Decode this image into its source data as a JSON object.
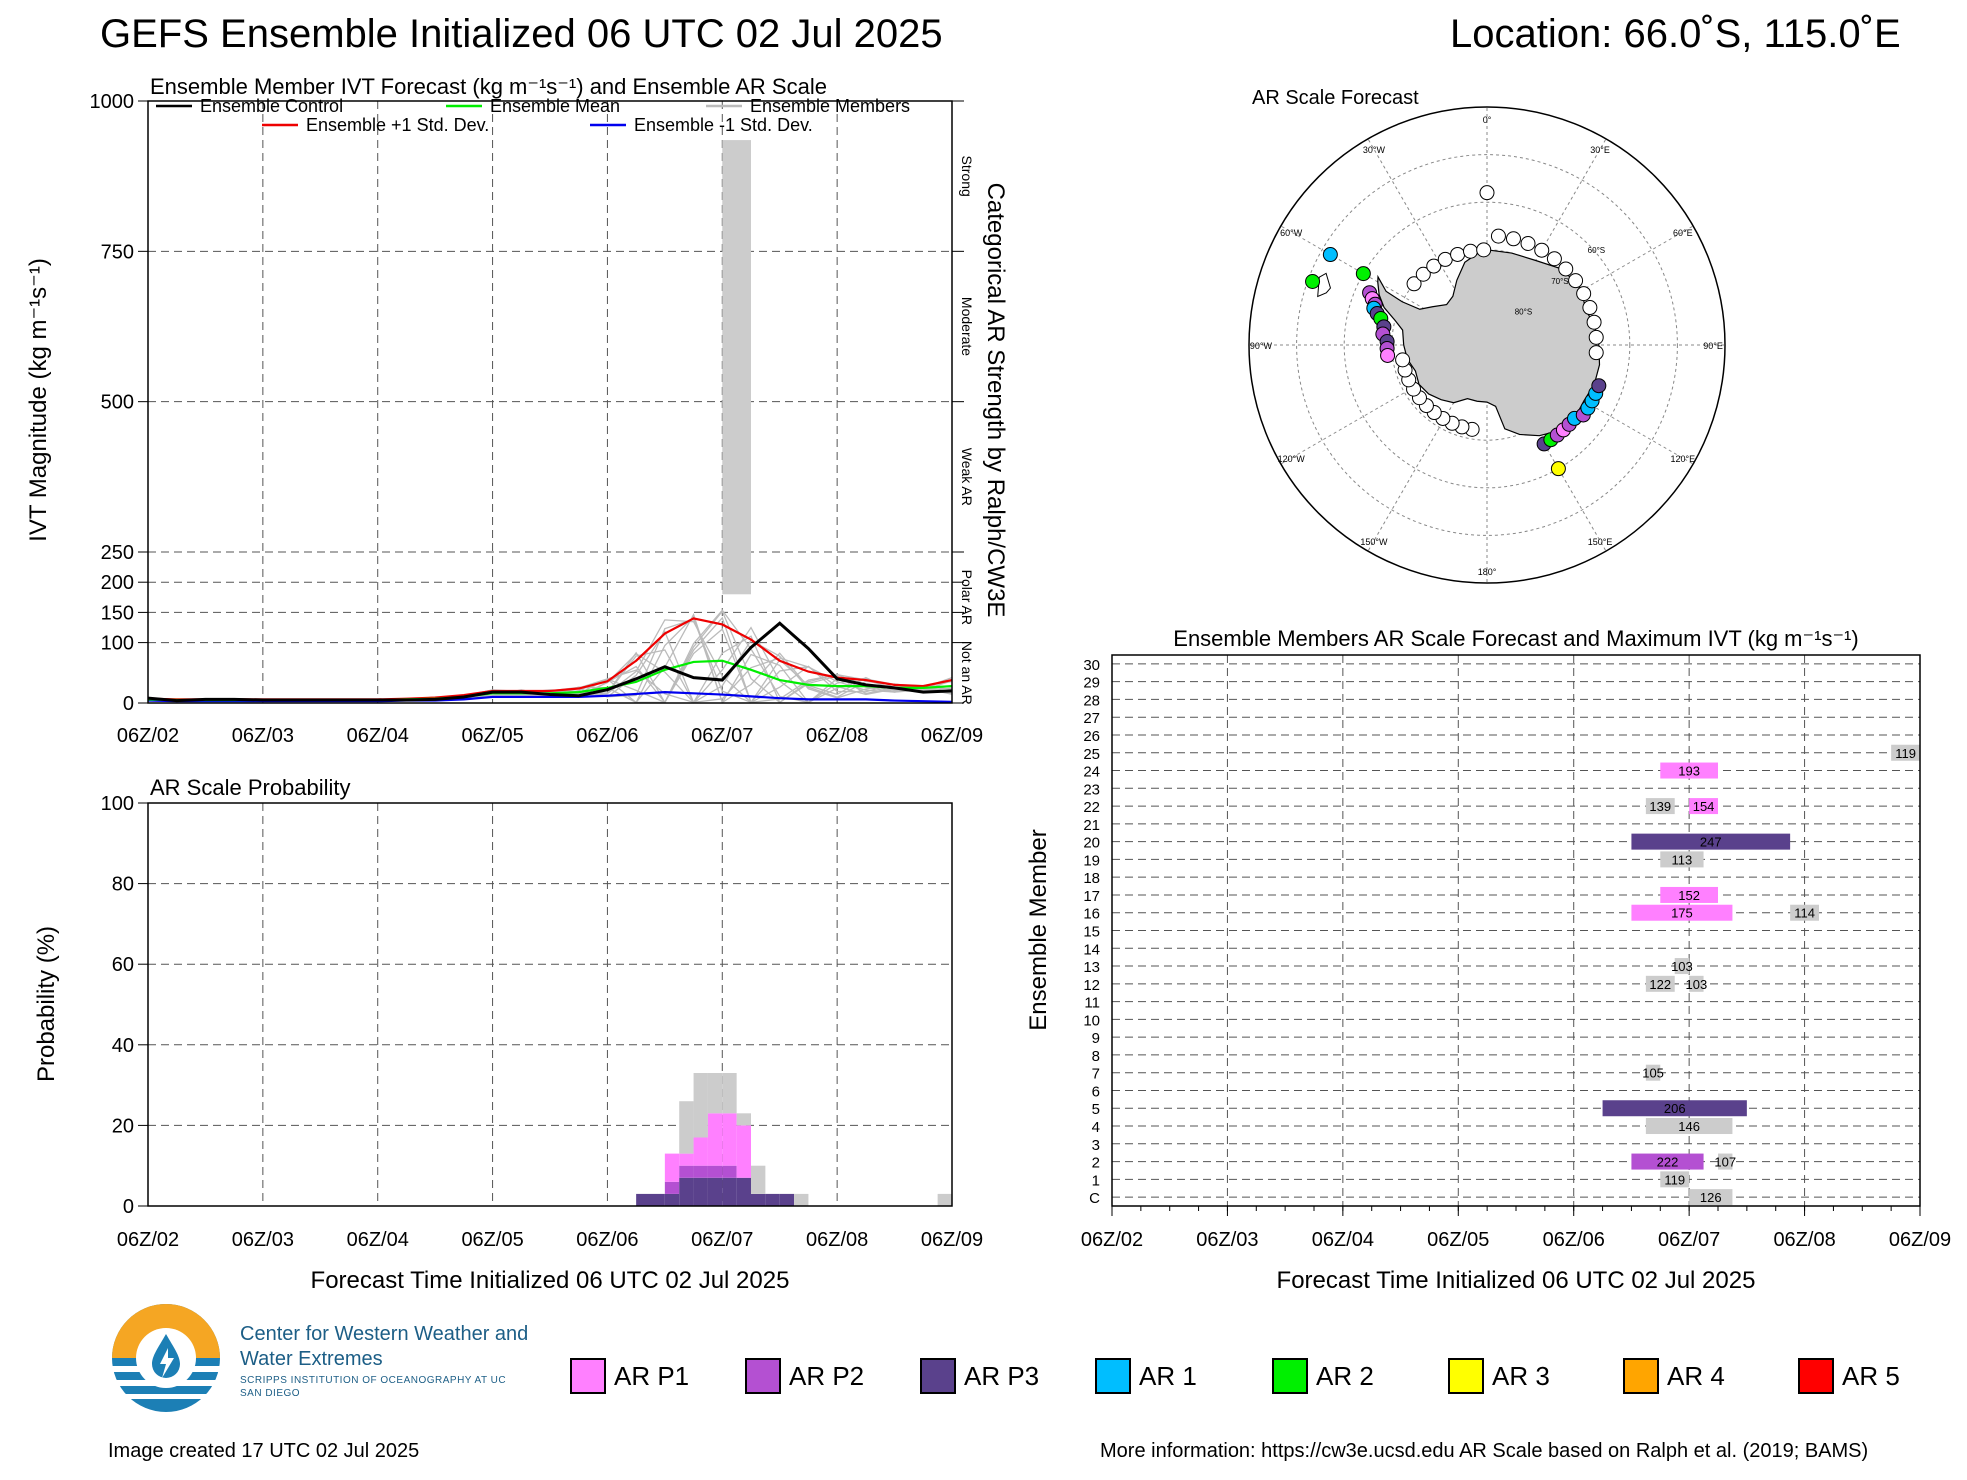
{
  "header": {
    "title": "GEFS Ensemble Initialized 06 UTC 02 Jul 2025",
    "location": "Location: 66.0˚S, 115.0˚E"
  },
  "chart_data": [
    {
      "type": "line",
      "title": "Ensemble Member IVT Forecast (kg m⁻¹s⁻¹) and Ensemble AR Scale",
      "ylabel": "IVT Magnitude (kg m⁻¹s⁻¹)",
      "right_label": "Categorical AR Strength by Ralph/CW3E",
      "ylim": [
        0,
        1000
      ],
      "xlim_hours": [
        0,
        168
      ],
      "x_tick_labels": [
        "06Z/02",
        "06Z/03",
        "06Z/04",
        "06Z/05",
        "06Z/06",
        "06Z/07",
        "06Z/08",
        "06Z/09"
      ],
      "y_ticks": [
        0,
        100,
        150,
        200,
        250,
        500,
        750,
        1000
      ],
      "categories_right": [
        {
          "label": "Not an AR",
          "center": 50
        },
        {
          "label": "Polar AR",
          "center": 175
        },
        {
          "label": "Weak AR",
          "center": 375
        },
        {
          "label": "Moderate",
          "center": 625
        },
        {
          "label": "Strong",
          "center": 875
        }
      ],
      "legend": [
        "Ensemble Control",
        "Ensemble Mean",
        "Ensemble Members",
        "Ensemble +1 Std. Dev.",
        "Ensemble -1 Std. Dev."
      ],
      "x_hours": [
        0,
        6,
        12,
        18,
        24,
        30,
        36,
        42,
        48,
        54,
        60,
        66,
        72,
        78,
        84,
        90,
        96,
        102,
        108,
        114,
        120,
        126,
        132,
        138,
        144,
        150,
        156,
        162,
        168
      ],
      "series": [
        {
          "name": "Ensemble Control",
          "color": "#000000",
          "values": [
            8,
            4,
            6,
            6,
            5,
            5,
            5,
            5,
            5,
            5,
            6,
            10,
            18,
            18,
            14,
            12,
            22,
            40,
            60,
            42,
            38,
            92,
            132,
            90,
            40,
            30,
            25,
            18,
            20
          ]
        },
        {
          "name": "Ensemble Mean",
          "color": "#00ee00",
          "values": [
            6,
            5,
            5,
            5,
            5,
            5,
            5,
            5,
            5,
            6,
            7,
            10,
            16,
            16,
            16,
            18,
            25,
            35,
            55,
            68,
            70,
            55,
            38,
            30,
            28,
            28,
            25,
            25,
            28
          ]
        },
        {
          "name": "Ensemble +1 Std. Dev.",
          "color": "#ee0000",
          "values": [
            7,
            6,
            6,
            6,
            6,
            6,
            6,
            6,
            6,
            7,
            9,
            13,
            20,
            20,
            20,
            24,
            36,
            70,
            115,
            140,
            130,
            105,
            70,
            52,
            42,
            38,
            30,
            28,
            38
          ]
        },
        {
          "name": "Ensemble -1 Std. Dev.",
          "color": "#0000ee",
          "values": [
            4,
            3,
            3,
            3,
            3,
            3,
            3,
            3,
            3,
            4,
            4,
            6,
            10,
            10,
            10,
            10,
            12,
            15,
            18,
            16,
            14,
            11,
            8,
            6,
            6,
            6,
            4,
            3,
            2
          ]
        }
      ],
      "ar_scale_bar": {
        "x_start_hours": 120,
        "x_end_hours": 126,
        "ivt_low": 180,
        "ivt_high": 935,
        "color": "#cccccc"
      }
    },
    {
      "type": "bar",
      "title": "AR Scale Probability",
      "ylabel": "Probability (%)",
      "xlabel": "Forecast Time Initialized 06 UTC 02 Jul 2025",
      "ylim": [
        0,
        100
      ],
      "y_ticks": [
        0,
        20,
        40,
        60,
        80,
        100
      ],
      "x_tick_labels": [
        "06Z/02",
        "06Z/03",
        "06Z/04",
        "06Z/05",
        "06Z/06",
        "06Z/07",
        "06Z/08",
        "06Z/09"
      ],
      "bin_hours": 3,
      "bins": [
        {
          "h": 102,
          "p3": 3,
          "p2": 0,
          "p1": 0,
          "gray": 0
        },
        {
          "h": 105,
          "p3": 3,
          "p2": 0,
          "p1": 0,
          "gray": 0
        },
        {
          "h": 108,
          "p3": 3,
          "p2": 3,
          "p1": 7,
          "gray": 0
        },
        {
          "h": 111,
          "p3": 7,
          "p2": 3,
          "p1": 3,
          "gray": 13
        },
        {
          "h": 114,
          "p3": 7,
          "p2": 3,
          "p1": 7,
          "gray": 16
        },
        {
          "h": 117,
          "p3": 7,
          "p2": 3,
          "p1": 13,
          "gray": 10
        },
        {
          "h": 120,
          "p3": 7,
          "p2": 3,
          "p1": 13,
          "gray": 10
        },
        {
          "h": 123,
          "p3": 7,
          "p2": 0,
          "p1": 13,
          "gray": 3
        },
        {
          "h": 126,
          "p3": 3,
          "p2": 0,
          "p1": 0,
          "gray": 7
        },
        {
          "h": 129,
          "p3": 3,
          "p2": 0,
          "p1": 0,
          "gray": 0
        },
        {
          "h": 132,
          "p3": 3,
          "p2": 0,
          "p1": 0,
          "gray": 0
        },
        {
          "h": 135,
          "p3": 0,
          "p2": 0,
          "p1": 0,
          "gray": 3
        },
        {
          "h": 165,
          "p3": 0,
          "p2": 0,
          "p1": 0,
          "gray": 3
        }
      ]
    },
    {
      "type": "scatter",
      "title": "AR Scale Forecast",
      "projection": "south-polar-stereographic",
      "meridian_labels": [
        "0°",
        "30°E",
        "60°E",
        "90°E",
        "120°E",
        "150°E",
        "180°",
        "150°W",
        "120°W",
        "90°W",
        "60°W",
        "30°W"
      ],
      "parallel_labels": [
        "60°S",
        "70°S",
        "80°S"
      ],
      "points": [
        {
          "lon": -60,
          "lat": -52,
          "cat": "AR 1"
        },
        {
          "lon": -70,
          "lat": -51,
          "cat": "AR 2"
        },
        {
          "lon": -60,
          "lat": -60,
          "cat": "AR 2"
        },
        {
          "lon": -66,
          "lat": -63,
          "cat": "AR P2"
        },
        {
          "lon": -68,
          "lat": -64,
          "cat": "AR P1"
        },
        {
          "lon": -70,
          "lat": -65,
          "cat": "AR P2"
        },
        {
          "lon": -72,
          "lat": -65,
          "cat": "AR 1"
        },
        {
          "lon": -74,
          "lat": -66,
          "cat": "AR P3"
        },
        {
          "lon": -76,
          "lat": -67,
          "cat": "AR 2"
        },
        {
          "lon": -80,
          "lat": -68,
          "cat": "AR P3"
        },
        {
          "lon": -84,
          "lat": -68,
          "cat": "AR P2"
        },
        {
          "lon": -88,
          "lat": -69,
          "cat": "AR P3"
        },
        {
          "lon": -92,
          "lat": -69,
          "cat": "AR P2"
        },
        {
          "lon": -96,
          "lat": -69,
          "cat": "AR P1"
        },
        {
          "lon": 150,
          "lat": -60,
          "cat": "AR 3"
        },
        {
          "lon": 150,
          "lat": -66,
          "cat": "AR P3"
        },
        {
          "lon": 146,
          "lat": -66,
          "cat": "AR 2"
        },
        {
          "lon": 142,
          "lat": -66,
          "cat": "AR P2"
        },
        {
          "lon": 138,
          "lat": -66,
          "cat": "AR P1"
        },
        {
          "lon": 134,
          "lat": -66,
          "cat": "AR P2"
        },
        {
          "lon": 130,
          "lat": -66,
          "cat": "AR 1"
        },
        {
          "lon": 126,
          "lat": -65,
          "cat": "AR P2"
        },
        {
          "lon": 122,
          "lat": -65,
          "cat": "AR 1"
        },
        {
          "lon": 118,
          "lat": -65,
          "cat": "AR 1"
        },
        {
          "lon": 114,
          "lat": -65,
          "cat": "AR 1"
        },
        {
          "lon": 110,
          "lat": -65,
          "cat": "AR P3"
        }
      ]
    },
    {
      "type": "table",
      "title": "Ensemble Members AR Scale Forecast and Maximum IVT (kg m⁻¹s⁻¹)",
      "ylabel": "Ensemble Member",
      "xlabel": "Forecast Time Initialized 06 UTC 02 Jul 2025",
      "members": [
        "C",
        "1",
        "2",
        "3",
        "4",
        "5",
        "6",
        "7",
        "8",
        "9",
        "10",
        "11",
        "12",
        "13",
        "14",
        "15",
        "16",
        "17",
        "18",
        "19",
        "20",
        "21",
        "22",
        "23",
        "24",
        "25",
        "26",
        "27",
        "28",
        "29",
        "30"
      ],
      "x_tick_labels": [
        "06Z/02",
        "06Z/03",
        "06Z/04",
        "06Z/05",
        "06Z/06",
        "06Z/07",
        "06Z/08",
        "06Z/09"
      ],
      "bars": [
        {
          "member": "C",
          "start": 120,
          "end": 129,
          "cat": "gray",
          "label": "126"
        },
        {
          "member": "1",
          "start": 114,
          "end": 120,
          "cat": "gray",
          "label": "119"
        },
        {
          "member": "2",
          "start": 108,
          "end": 123,
          "cat": "AR P2",
          "label": "222"
        },
        {
          "member": "2",
          "start": 126,
          "end": 129,
          "cat": "gray",
          "label": "107"
        },
        {
          "member": "4",
          "start": 111,
          "end": 129,
          "cat": "gray",
          "label": "146"
        },
        {
          "member": "5",
          "start": 102,
          "end": 132,
          "cat": "AR P3",
          "label": "206"
        },
        {
          "member": "7",
          "start": 111,
          "end": 114,
          "cat": "gray",
          "label": "105"
        },
        {
          "member": "12",
          "start": 111,
          "end": 117,
          "cat": "gray",
          "label": "122"
        },
        {
          "member": "12",
          "start": 120,
          "end": 123,
          "cat": "gray",
          "label": "103"
        },
        {
          "member": "13",
          "start": 117,
          "end": 120,
          "cat": "gray",
          "label": "103"
        },
        {
          "member": "16",
          "start": 108,
          "end": 129,
          "cat": "AR P1",
          "label": "175"
        },
        {
          "member": "16",
          "start": 141,
          "end": 147,
          "cat": "gray",
          "label": "114"
        },
        {
          "member": "17",
          "start": 114,
          "end": 126,
          "cat": "AR P1",
          "label": "152"
        },
        {
          "member": "19",
          "start": 114,
          "end": 123,
          "cat": "gray",
          "label": "113"
        },
        {
          "member": "20",
          "start": 108,
          "end": 141,
          "cat": "AR P3",
          "label": "247"
        },
        {
          "member": "22",
          "start": 111,
          "end": 117,
          "cat": "gray",
          "label": "139"
        },
        {
          "member": "22",
          "start": 120,
          "end": 126,
          "cat": "AR P1",
          "label": "154"
        },
        {
          "member": "24",
          "start": 114,
          "end": 126,
          "cat": "AR P1",
          "label": "193"
        },
        {
          "member": "25",
          "start": 162,
          "end": 168,
          "cat": "gray",
          "label": "119"
        }
      ]
    }
  ],
  "ar_legend": [
    {
      "label": "AR P1",
      "color": "#ff80ff"
    },
    {
      "label": "AR P2",
      "color": "#b450d2"
    },
    {
      "label": "AR P3",
      "color": "#5a418c"
    },
    {
      "label": "AR 1",
      "color": "#00beff"
    },
    {
      "label": "AR 2",
      "color": "#00f000"
    },
    {
      "label": "AR 3",
      "color": "#ffff00"
    },
    {
      "label": "AR 4",
      "color": "#ffa500"
    },
    {
      "label": "AR 5",
      "color": "#ff0000"
    }
  ],
  "footer": {
    "logo_name": "Center for Western Weather and Water Extremes",
    "logo_sub": "SCRIPPS INSTITUTION OF OCEANOGRAPHY AT UC SAN DIEGO",
    "created": "Image created 17 UTC 02 Jul 2025",
    "more_info": "More information: https://cw3e.ucsd.edu AR Scale based on Ralph et al. (2019; BAMS)"
  }
}
